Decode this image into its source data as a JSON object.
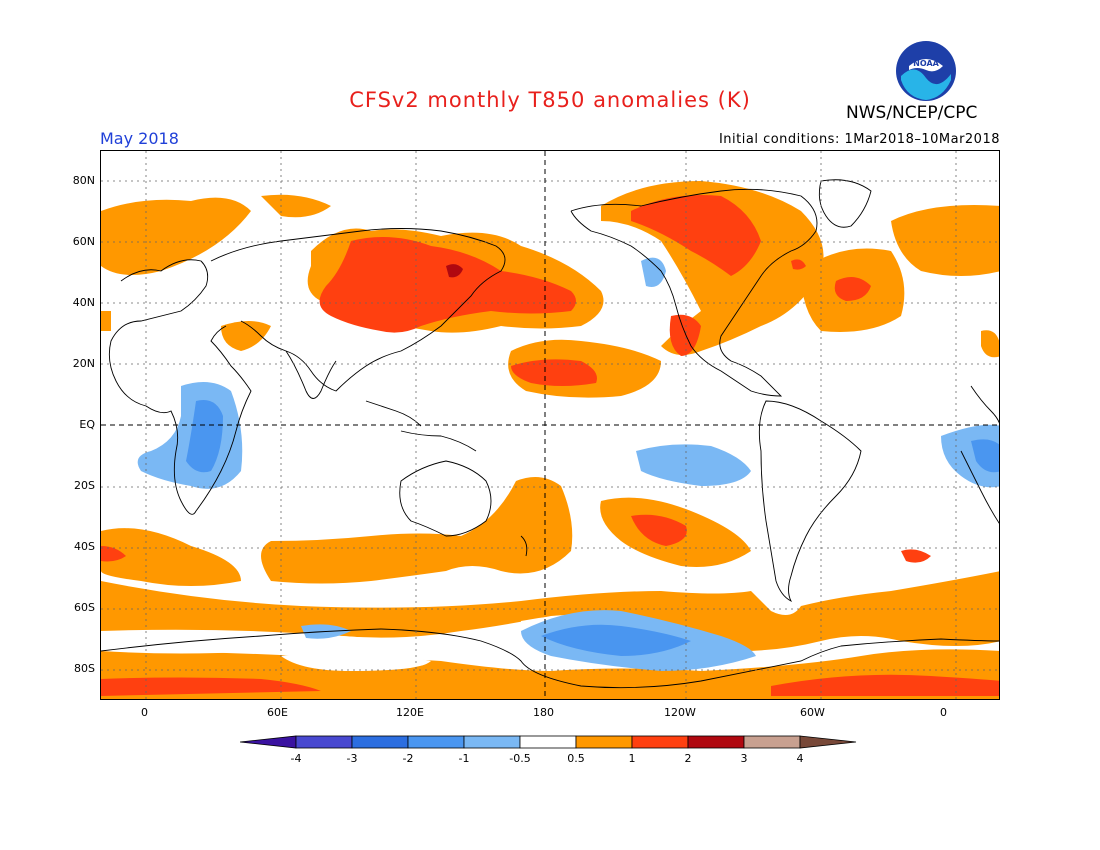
{
  "header": {
    "title": "CFSv2 monthly T850 anomalies (K)",
    "agency": "NWS/NCEP/CPC",
    "period": "May 2018",
    "initial_conditions": "Initial conditions: 1Mar2018–10Mar2018",
    "logo_text": "NOAA"
  },
  "map": {
    "lon_labels": [
      "0",
      "60E",
      "120E",
      "180",
      "120W",
      "60W",
      "0"
    ],
    "lat_labels": [
      "80N",
      "60N",
      "40N",
      "20N",
      "EQ",
      "20S",
      "40S",
      "60S",
      "80S"
    ]
  },
  "colorbar": {
    "labels": [
      "-4",
      "-3",
      "-2",
      "-1",
      "-0.5",
      "0.5",
      "1",
      "2",
      "3",
      "4"
    ],
    "colors": [
      "#3a12a0",
      "#4848d0",
      "#2c6ee0",
      "#4a96f0",
      "#7ab8f4",
      "#ffffff",
      "#ff9800",
      "#ff4010",
      "#b00810",
      "#c8a090",
      "#784838"
    ]
  },
  "colors": {
    "warm1": "#ff9800",
    "warm2": "#ff4010",
    "warm3": "#b00810",
    "cool1": "#7ab8f4",
    "cool2": "#4a96f0",
    "title": "#e8201c",
    "period": "#2040d8"
  }
}
